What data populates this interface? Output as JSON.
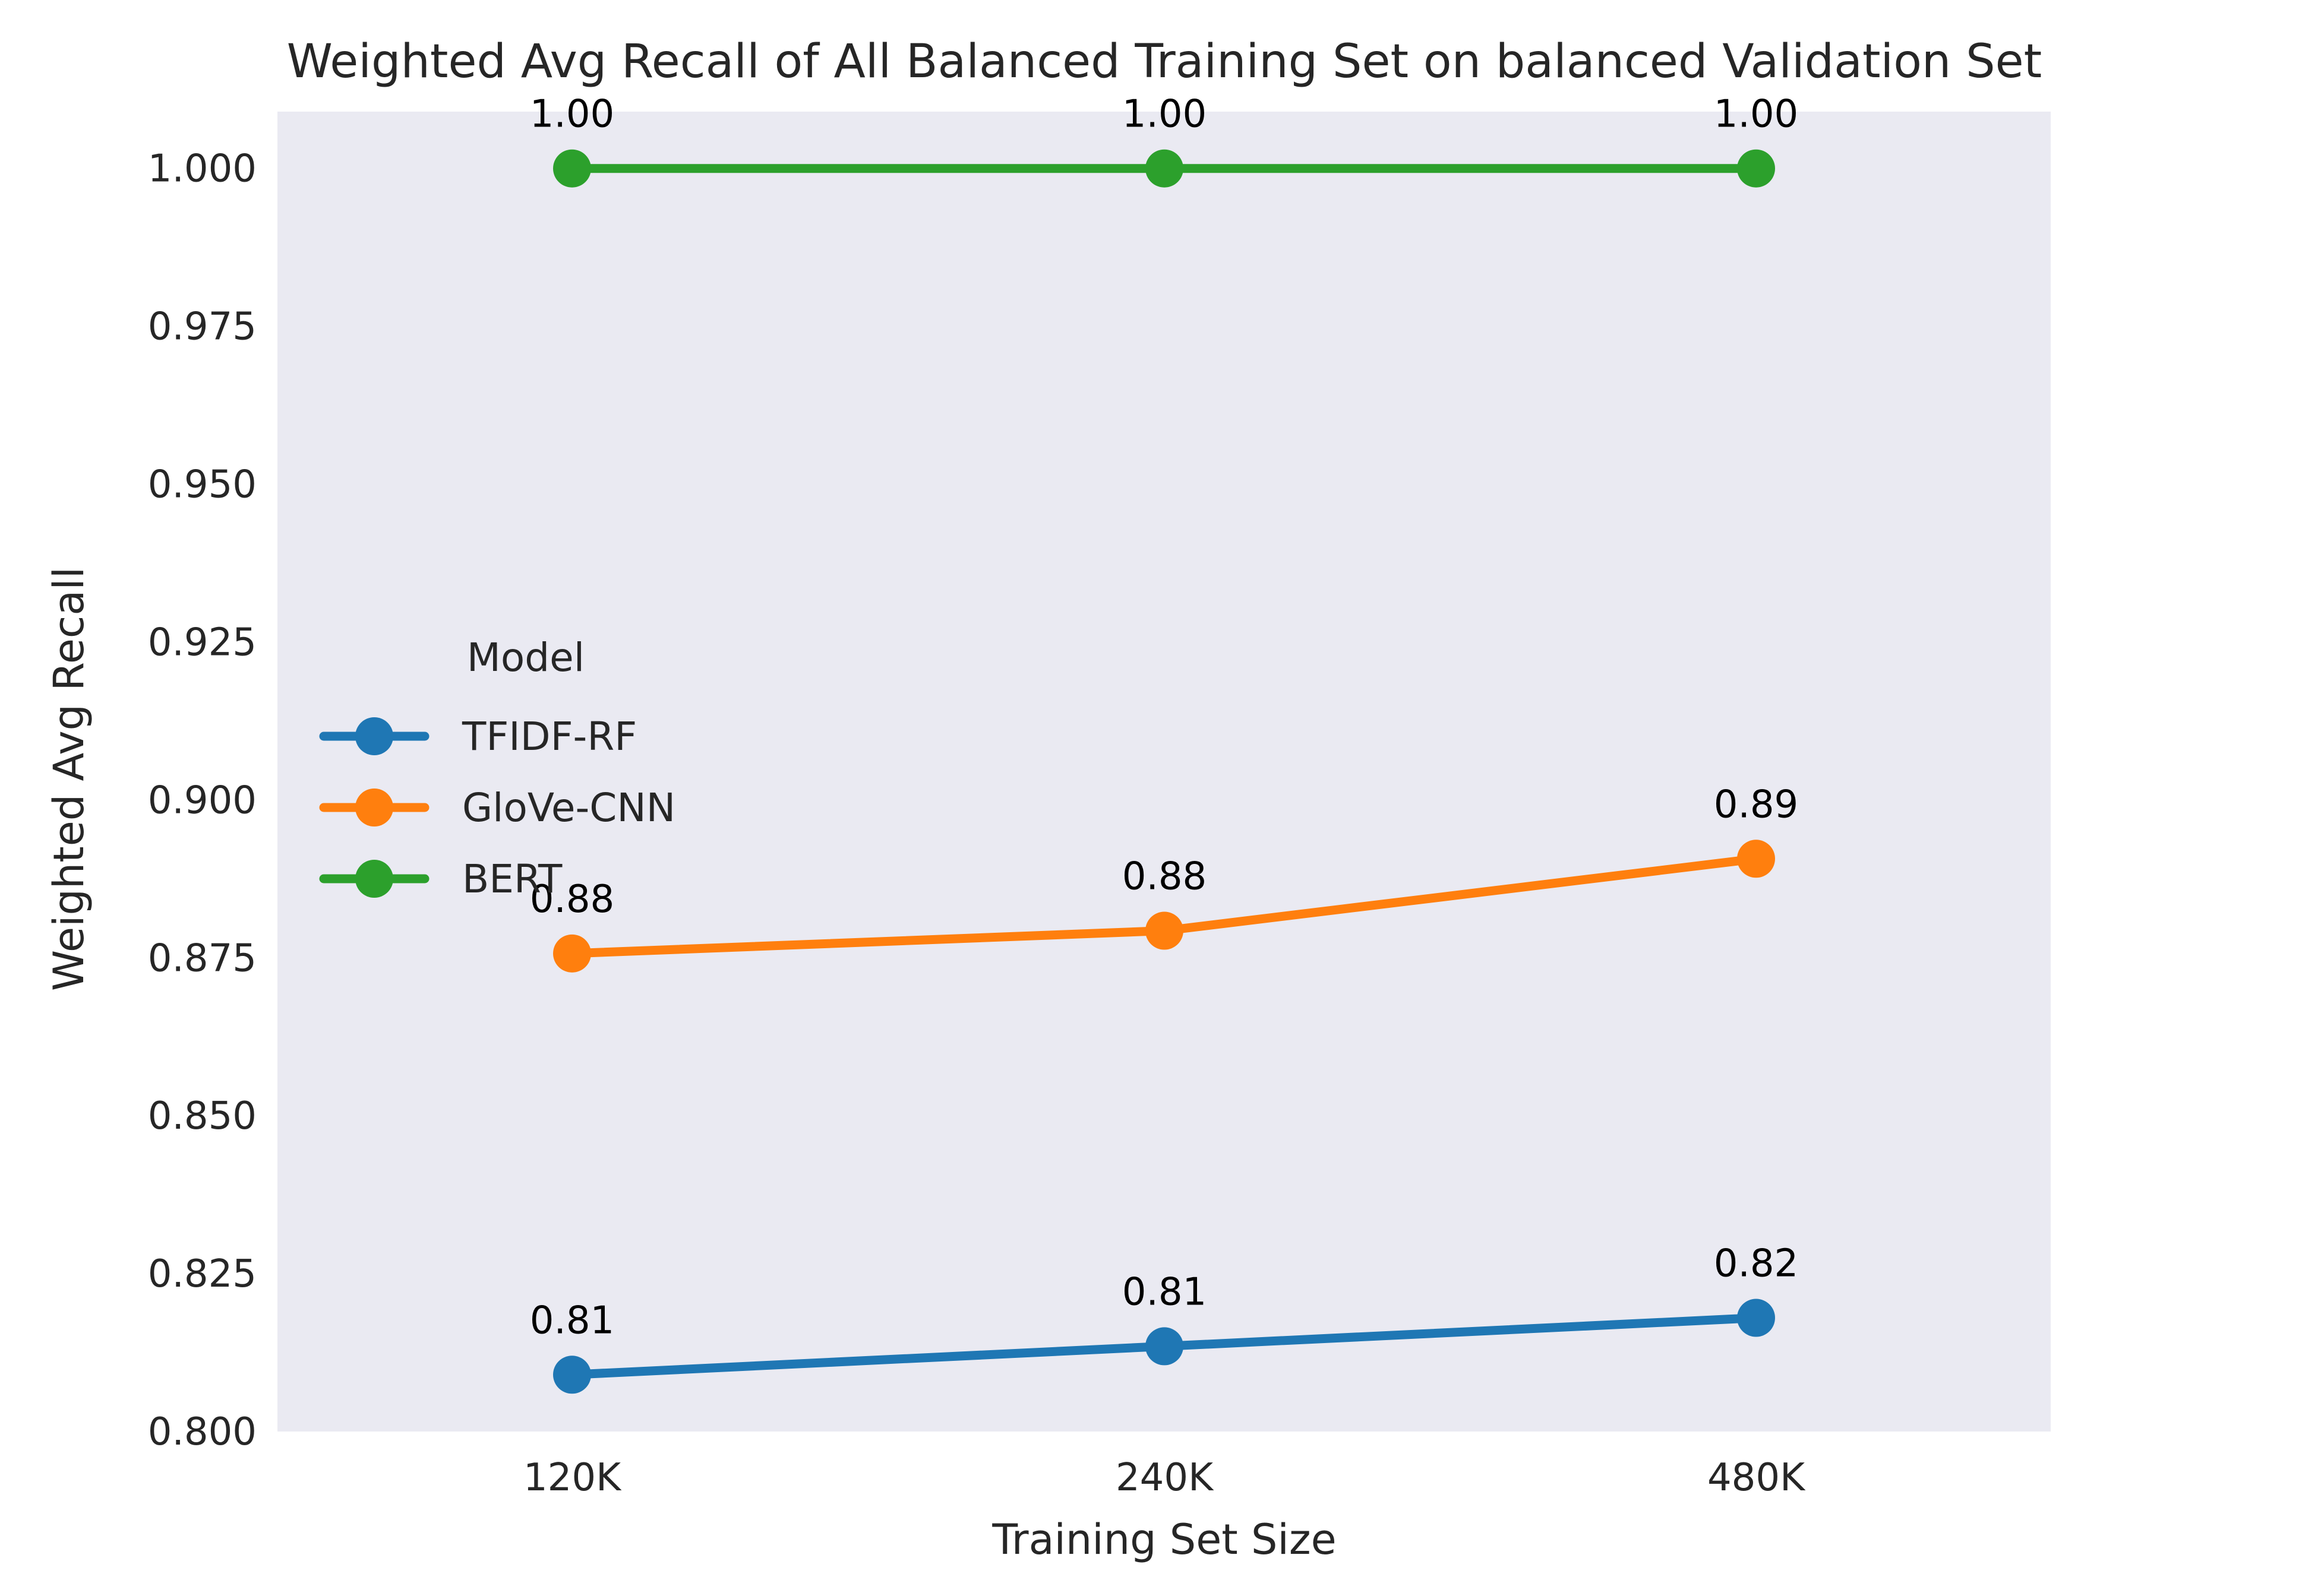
{
  "chart_data": {
    "type": "line",
    "title": "Weighted Avg Recall of All Balanced Training Set on balanced Validation Set",
    "xlabel": "Training Set Size",
    "ylabel": "Weighted Avg Recall",
    "categories": [
      "120K",
      "240K",
      "480K"
    ],
    "ylim": [
      0.8,
      1.009
    ],
    "yticks": [
      "0.800",
      "0.825",
      "0.850",
      "0.875",
      "0.900",
      "0.925",
      "0.950",
      "0.975",
      "1.000"
    ],
    "grid": false,
    "legend": {
      "title": "Model",
      "placement": "center-left"
    },
    "series": [
      {
        "name": "TFIDF-RF",
        "color": "#1f77b4",
        "values": [
          0.809,
          0.8135,
          0.818
        ],
        "labels": [
          "0.81",
          "0.81",
          "0.82"
        ]
      },
      {
        "name": "GloVe-CNN",
        "color": "#ff7f0e",
        "values": [
          0.8757,
          0.8793,
          0.8907
        ],
        "labels": [
          "0.88",
          "0.88",
          "0.89"
        ]
      },
      {
        "name": "BERT",
        "color": "#2ca02c",
        "values": [
          1.0,
          1.0,
          1.0
        ],
        "labels": [
          "1.00",
          "1.00",
          "1.00"
        ]
      }
    ]
  }
}
